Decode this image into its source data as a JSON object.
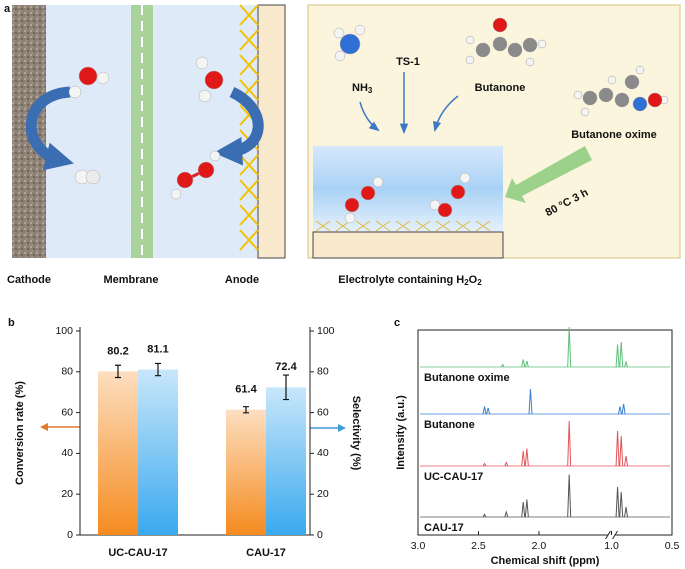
{
  "diagram": {
    "panel_label": "a",
    "left": {
      "cathode": "Cathode",
      "membrane": "Membrane",
      "anode": "Anode"
    },
    "right": {
      "catalyst": "TS-1",
      "ammonia": {
        "text": "NH",
        "sub": "3"
      },
      "ketone": "Butanone",
      "product": "Butanone oxime",
      "condition": "80 °C  3 h",
      "electrolyte": [
        "Electrolyte containing H",
        "2",
        "O",
        "2"
      ]
    }
  },
  "chart_data": [
    {
      "type": "bar",
      "panel_label": "b",
      "categories": [
        "UC-CAU-17",
        "CAU-17"
      ],
      "series": [
        {
          "color": "#f58b1f",
          "values": [
            80.2,
            61.4
          ],
          "errors": [
            3,
            1.5
          ]
        },
        {
          "color": "#3aa9ee",
          "values": [
            81.1,
            72.4
          ],
          "errors": [
            3,
            6
          ],
          "axis": "y2"
        }
      ],
      "ylabel": "Conversion rate (%)",
      "y2label": "Selectivity (%)",
      "ylim": [
        0,
        100
      ],
      "yticks": [
        0,
        20,
        40,
        60,
        80,
        100
      ],
      "y2lim": [
        0,
        100
      ],
      "y2ticks": [
        0,
        20,
        40,
        60,
        80,
        100
      ]
    },
    {
      "type": "spectrum",
      "panel_label": "c",
      "xlabel": "Chemical shift (ppm)",
      "ylabel": "Intensity (a.u.)",
      "xlim": [
        3.0,
        0.5
      ],
      "axis_break": [
        1.4,
        1.0
      ],
      "xticks": [
        {
          "value": 3,
          "label": "3.0"
        },
        {
          "value": 2.5,
          "label": "2.5"
        },
        {
          "value": 2,
          "label": "2.0"
        },
        {
          "value": 1,
          "label": "1.0"
        },
        {
          "value": 0.5,
          "label": "0.5"
        }
      ],
      "series": [
        {
          "name": "Butanone oxime",
          "color": "#5cbf7a",
          "x": [
            2.3,
            2.13,
            2.1,
            1.75,
            0.95,
            0.92,
            0.88
          ],
          "values": [
            0.05,
            0.15,
            0.12,
            0.8,
            0.45,
            0.5,
            0.1
          ]
        },
        {
          "name": "Butanone",
          "color": "#3a7fd0",
          "x": [
            2.45,
            2.42,
            2.07,
            0.93,
            0.9
          ],
          "values": [
            0.15,
            0.12,
            0.5,
            0.15,
            0.2
          ]
        },
        {
          "name": "UC-CAU-17",
          "color": "#e0555a",
          "x": [
            2.45,
            2.27,
            2.13,
            2.1,
            1.75,
            0.95,
            0.92,
            0.88
          ],
          "values": [
            0.05,
            0.07,
            0.3,
            0.35,
            0.9,
            0.7,
            0.6,
            0.2
          ]
        },
        {
          "name": "CAU-17",
          "color": "#555555",
          "x": [
            2.45,
            2.27,
            2.13,
            2.1,
            1.75,
            0.95,
            0.92,
            0.88
          ],
          "values": [
            0.05,
            0.1,
            0.3,
            0.35,
            0.85,
            0.6,
            0.5,
            0.2
          ]
        }
      ]
    }
  ]
}
